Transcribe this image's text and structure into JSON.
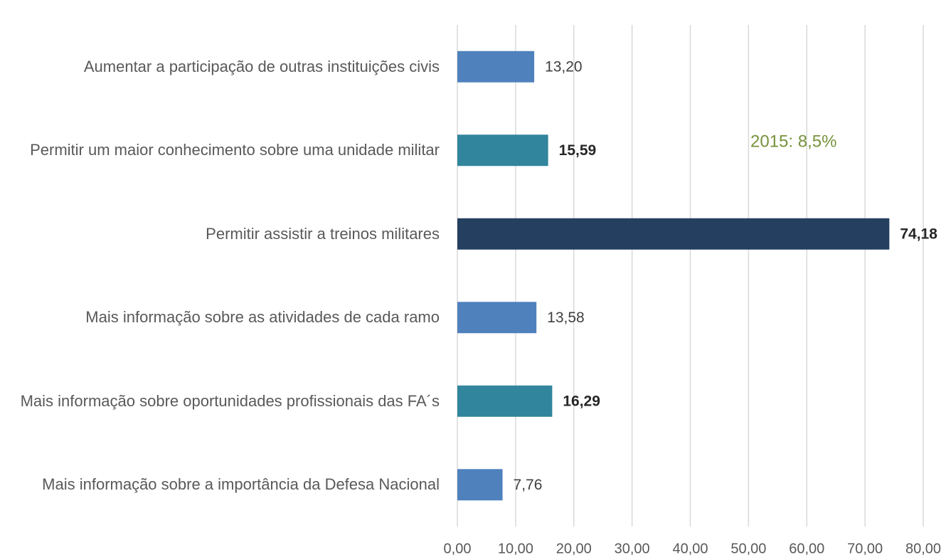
{
  "chart_data": {
    "type": "hbar",
    "categories": [
      "Aumentar a participação de outras instituições civis",
      "Permitir um maior conhecimento sobre uma unidade militar",
      "Permitir assistir a treinos militares",
      "Mais informação sobre as atividades de cada ramo",
      "Mais informação sobre oportunidades profissionais das FA´s",
      "Mais informação sobre a importância da Defesa Nacional"
    ],
    "values": [
      13.2,
      15.59,
      74.18,
      13.58,
      16.29,
      7.76
    ],
    "value_labels": [
      "13,20",
      "15,59",
      "74,18",
      "13,58",
      "16,29",
      "7,76"
    ],
    "value_label_bold": [
      false,
      true,
      true,
      false,
      true,
      false
    ],
    "colors": [
      "#4f81bd",
      "#31859c",
      "#243f60",
      "#4f81bd",
      "#31859c",
      "#4f81bd"
    ],
    "xlim": [
      0,
      80
    ],
    "xticks": [
      {
        "value": 0,
        "label": "0,00"
      },
      {
        "value": 10,
        "label": "10,00"
      },
      {
        "value": 20,
        "label": "20,00"
      },
      {
        "value": 30,
        "label": "30,00"
      },
      {
        "value": 40,
        "label": "40,00"
      },
      {
        "value": 50,
        "label": "50,00"
      },
      {
        "value": 60,
        "label": "60,00"
      },
      {
        "value": 70,
        "label": "70,00"
      },
      {
        "value": 80,
        "label": "80,00"
      }
    ],
    "grid": true,
    "annotation": "2015: 8,5%",
    "annotation_color": "#77933c"
  }
}
